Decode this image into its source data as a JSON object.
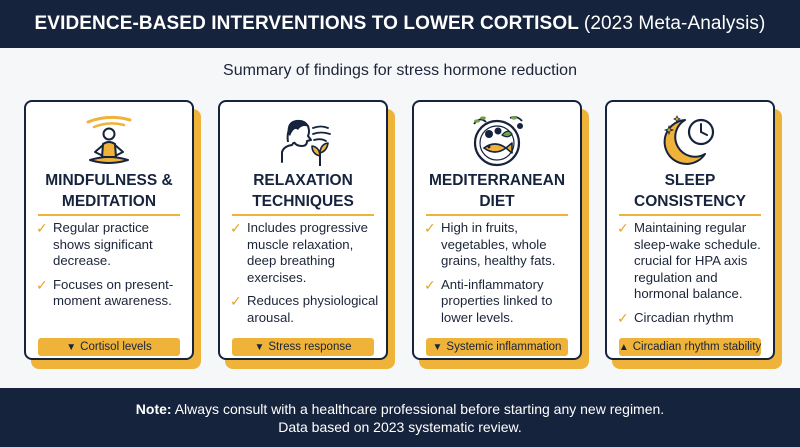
{
  "header": {
    "title_main": "EVIDENCE-BASED INTERVENTIONS TO LOWER CORTISOL",
    "title_sub": "(2023 Meta-Analysis)"
  },
  "subtitle": "Summary of findings for stress hormone reduction",
  "cards": [
    {
      "icon": "meditation-icon",
      "title": "Mindfulness & Meditation",
      "bullets": [
        "Regular practice shows significant decrease.",
        "Focuses on present-moment awareness."
      ],
      "badge": {
        "direction": "down",
        "label": "Cortisol levels"
      }
    },
    {
      "icon": "breathing-icon",
      "title": "Relaxation Techniques",
      "bullets": [
        "Includes progressive muscle relaxation, deep breathing exercises.",
        "Reduces physiological arousal."
      ],
      "badge": {
        "direction": "down",
        "label": "Stress response"
      }
    },
    {
      "icon": "food-plate-icon",
      "title": "Mediterranean Diet",
      "bullets": [
        "High in fruits, vegetables, whole grains, healthy fats.",
        "Anti-inflammatory properties linked to lower levels."
      ],
      "badge": {
        "direction": "down",
        "label": "Systemic inflammation"
      }
    },
    {
      "icon": "moon-clock-icon",
      "title": "Sleep Consistency",
      "bullets": [
        "Maintaining regular sleep-wake schedule. crucial for HPA axis regulation and hormonal balance.",
        "Circadian rhythm"
      ],
      "badge": {
        "direction": "up",
        "label": "Circadian rhythm stability"
      }
    }
  ],
  "footer": {
    "note_label": "Note:",
    "note_text": "Always consult with a healthcare professional before starting any new regimen.",
    "line2": "Data based on 2023 systematic review."
  },
  "colors": {
    "navy": "#16233d",
    "accent": "#f0b33a",
    "check": "#e9a224"
  }
}
